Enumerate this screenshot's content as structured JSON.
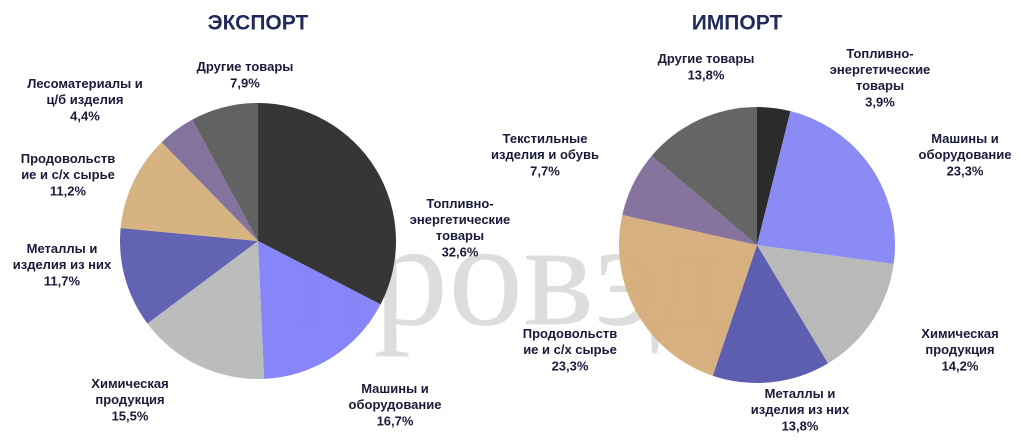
{
  "watermark": "провэд",
  "chart_data": [
    {
      "type": "pie",
      "title": "ЭКСПОРТ",
      "categories": [
        "Топливно-\nэнергетические\nтовары",
        "Машины и\nоборудование",
        "Химическая\nпродукция",
        "Металлы и\nизделия из них",
        "Продовольств\nие и с/х сырье",
        "Лесоматериалы и\nц/б изделия",
        "Другие товары"
      ],
      "values": [
        32.6,
        16.7,
        15.5,
        11.7,
        11.2,
        4.4,
        7.9
      ],
      "value_labels": [
        "32,6%",
        "16,7%",
        "15,5%",
        "11,7%",
        "11,2%",
        "4,4%",
        "7,9%"
      ],
      "colors": [
        "#2b2b2b",
        "#8080f8",
        "#b8b8b8",
        "#5b5bb0",
        "#d4b07a",
        "#7d6b98",
        "#5a5a5a"
      ]
    },
    {
      "type": "pie",
      "title": "ИМПОРТ",
      "categories": [
        "Топливно-\nэнергетические\nтовары",
        "Машины и\nоборудование",
        "Химическая\nпродукция",
        "Металлы и\nизделия из них",
        "Продовольств\nие и с/х сырье",
        "Текстильные\nизделия и обувь",
        "Другие товары"
      ],
      "values": [
        3.9,
        23.3,
        14.2,
        13.8,
        23.3,
        7.7,
        13.8
      ],
      "value_labels": [
        "3,9%",
        "23,3%",
        "14,2%",
        "13,8%",
        "23,3%",
        "7,7%",
        "13,8%"
      ],
      "colors": [
        "#202020",
        "#8585f5",
        "#b5b5b5",
        "#5555ad",
        "#d4ad78",
        "#7f6b99",
        "#5d5d5d"
      ]
    }
  ]
}
